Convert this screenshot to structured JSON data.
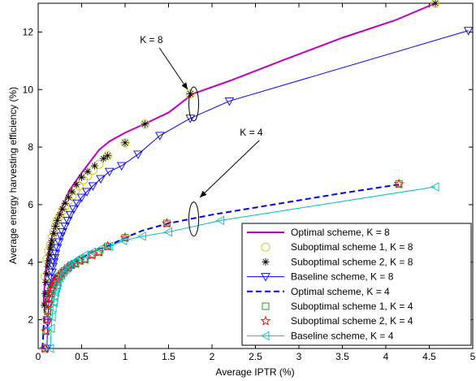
{
  "chart_data": {
    "type": "line",
    "title": "",
    "xlabel": "Average IPTR (%)",
    "ylabel": "Average energy harvesting efficiency (%)",
    "xlim": [
      0,
      5
    ],
    "ylim": [
      1,
      13
    ],
    "xticks": [
      0,
      0.5,
      1,
      1.5,
      2,
      2.5,
      3,
      3.5,
      4,
      4.5,
      5
    ],
    "xtick_labels": [
      "0",
      "0.5",
      "1",
      "1.5",
      "2",
      "2.5",
      "3",
      "3.5",
      "4",
      "4.5",
      "5"
    ],
    "yticks": [
      2,
      4,
      6,
      8,
      10,
      12
    ],
    "ytick_labels": [
      "2",
      "4",
      "6",
      "8",
      "10",
      "12"
    ],
    "grid": false,
    "legend_position": "bottom-right",
    "series": [
      {
        "name": "Optimal scheme,  K = 8",
        "color": "#bf00bf",
        "line": "solid",
        "marker": "none",
        "x": [
          0.06,
          0.08,
          0.1,
          0.13,
          0.16,
          0.2,
          0.25,
          0.3,
          0.36,
          0.43,
          0.5,
          0.6,
          0.7,
          0.82,
          1.0,
          1.22,
          1.5,
          1.78,
          2.2,
          2.8,
          3.5,
          4.1,
          4.57
        ],
        "y": [
          2.5,
          3.5,
          4.0,
          4.5,
          4.9,
          5.3,
          5.7,
          6.1,
          6.5,
          6.8,
          7.1,
          7.5,
          7.9,
          8.2,
          8.5,
          8.8,
          9.2,
          9.85,
          10.3,
          11.0,
          11.8,
          12.4,
          13.0
        ]
      },
      {
        "name": "Suboptimal scheme 1, K = 8",
        "color": "#c8c800",
        "line": "none",
        "marker": "circle",
        "x": [
          0.08,
          0.1,
          0.12,
          0.14,
          0.16,
          0.18,
          0.2,
          0.22,
          0.25,
          0.28,
          0.31,
          0.35,
          0.39,
          0.43,
          0.47,
          0.52,
          0.57,
          0.63,
          0.7,
          0.8,
          1.0,
          1.23,
          1.75,
          4.57
        ],
        "y": [
          3.5,
          4.1,
          4.4,
          4.6,
          4.85,
          5.05,
          5.25,
          5.45,
          5.6,
          5.8,
          5.95,
          6.15,
          6.3,
          6.5,
          6.65,
          6.85,
          7.0,
          7.2,
          7.4,
          7.7,
          8.15,
          8.8,
          9.85,
          13.0
        ]
      },
      {
        "name": "Suboptimal scheme 2, K = 8",
        "color": "#000000",
        "line": "none",
        "marker": "asterisk",
        "x": [
          0.07,
          0.08,
          0.09,
          0.1,
          0.11,
          0.12,
          0.13,
          0.14,
          0.15,
          0.16,
          0.18,
          0.2,
          0.22,
          0.25,
          0.28,
          0.31,
          0.35,
          0.39,
          0.44,
          0.5,
          0.57,
          0.65,
          0.75,
          0.8,
          1.0,
          1.23,
          1.75,
          4.57
        ],
        "y": [
          2.5,
          2.9,
          3.3,
          3.6,
          3.85,
          4.05,
          4.25,
          4.45,
          4.6,
          4.75,
          5.0,
          5.25,
          5.45,
          5.65,
          5.85,
          6.05,
          6.25,
          6.45,
          6.7,
          6.95,
          7.15,
          7.35,
          7.6,
          7.7,
          8.15,
          8.8,
          9.85,
          13.0
        ]
      },
      {
        "name": "Baseline scheme, K = 8",
        "color": "#0000ff",
        "line": "solid",
        "marker": "triangle-down",
        "x": [
          0.1,
          0.11,
          0.12,
          0.13,
          0.14,
          0.15,
          0.16,
          0.17,
          0.18,
          0.19,
          0.2,
          0.22,
          0.24,
          0.26,
          0.28,
          0.31,
          0.34,
          0.37,
          0.41,
          0.45,
          0.5,
          0.56,
          0.63,
          0.72,
          0.82,
          0.96,
          1.15,
          1.4,
          1.75,
          2.2,
          4.95
        ],
        "y": [
          1.0,
          1.9,
          2.5,
          2.9,
          3.2,
          3.45,
          3.65,
          3.85,
          4.0,
          4.15,
          4.3,
          4.5,
          4.7,
          4.9,
          5.05,
          5.25,
          5.45,
          5.65,
          5.85,
          6.05,
          6.25,
          6.45,
          6.65,
          6.9,
          7.15,
          7.35,
          7.75,
          8.4,
          9.0,
          9.6,
          12.05
        ]
      },
      {
        "name": "Optimal scheme,  K = 4",
        "color": "#0000ff",
        "line": "dashed",
        "marker": "none",
        "x": [
          0.05,
          0.07,
          0.09,
          0.12,
          0.15,
          0.2,
          0.25,
          0.3,
          0.37,
          0.45,
          0.53,
          0.62,
          0.7,
          0.8,
          1.0,
          1.2,
          1.5,
          2.0,
          2.5,
          3.0,
          3.5,
          4.15
        ],
        "y": [
          1.0,
          2.2,
          2.8,
          3.1,
          3.3,
          3.5,
          3.65,
          3.8,
          3.95,
          4.05,
          4.2,
          4.35,
          4.45,
          4.55,
          4.85,
          5.1,
          5.35,
          5.65,
          5.9,
          6.15,
          6.4,
          6.7
        ]
      },
      {
        "name": "Suboptimal scheme 1, K = 4",
        "color": "#00a000",
        "line": "none",
        "marker": "square",
        "x": [
          0.08,
          0.09,
          0.1,
          0.11,
          0.12,
          0.13,
          0.14,
          0.15,
          0.17,
          0.19,
          0.21,
          0.24,
          0.27,
          0.3,
          0.34,
          0.38,
          0.43,
          0.48,
          0.54,
          0.62,
          0.7,
          0.8,
          1.0,
          1.48,
          4.15
        ],
        "y": [
          1.0,
          1.6,
          2.0,
          2.3,
          2.55,
          2.75,
          2.9,
          3.05,
          3.2,
          3.3,
          3.4,
          3.5,
          3.6,
          3.7,
          3.8,
          3.9,
          3.95,
          4.05,
          4.1,
          4.25,
          4.35,
          4.55,
          4.85,
          5.35,
          6.72
        ]
      },
      {
        "name": "Suboptimal scheme 2, K = 4",
        "color": "#ff0000",
        "line": "none",
        "marker": "pentagram",
        "x": [
          0.08,
          0.09,
          0.1,
          0.11,
          0.12,
          0.13,
          0.14,
          0.15,
          0.17,
          0.19,
          0.21,
          0.24,
          0.27,
          0.3,
          0.34,
          0.38,
          0.43,
          0.48,
          0.54,
          0.62,
          0.7,
          0.8,
          1.0,
          1.48,
          4.15
        ],
        "y": [
          1.0,
          1.6,
          2.0,
          2.3,
          2.55,
          2.75,
          2.9,
          3.05,
          3.2,
          3.3,
          3.4,
          3.5,
          3.6,
          3.7,
          3.8,
          3.9,
          3.95,
          4.05,
          4.1,
          4.25,
          4.35,
          4.55,
          4.85,
          5.35,
          6.72
        ]
      },
      {
        "name": "Baseline scheme, K = 4",
        "color": "#00bfbf",
        "line": "solid",
        "marker": "triangle-left",
        "x": [
          0.14,
          0.15,
          0.16,
          0.17,
          0.18,
          0.19,
          0.2,
          0.21,
          0.22,
          0.23,
          0.25,
          0.27,
          0.29,
          0.32,
          0.35,
          0.39,
          0.43,
          0.48,
          0.54,
          0.62,
          0.71,
          0.82,
          0.98,
          1.2,
          1.5,
          2.1,
          4.57
        ],
        "y": [
          1.0,
          1.7,
          2.1,
          2.4,
          2.6,
          2.8,
          2.95,
          3.1,
          3.2,
          3.3,
          3.45,
          3.55,
          3.65,
          3.75,
          3.85,
          3.95,
          4.05,
          4.15,
          4.25,
          4.35,
          4.45,
          4.55,
          4.75,
          4.9,
          5.05,
          5.45,
          6.62
        ]
      }
    ],
    "annotations": [
      {
        "text": "K = 8",
        "x": 1.17,
        "y": 11.62,
        "arrow_to": [
          1.72,
          10.0
        ],
        "ellipse_center": [
          1.79,
          9.5
        ]
      },
      {
        "text": "K = 4",
        "x": 2.32,
        "y": 8.4,
        "arrow_to": [
          1.86,
          6.25
        ],
        "ellipse_center": [
          1.79,
          5.5
        ]
      }
    ]
  }
}
